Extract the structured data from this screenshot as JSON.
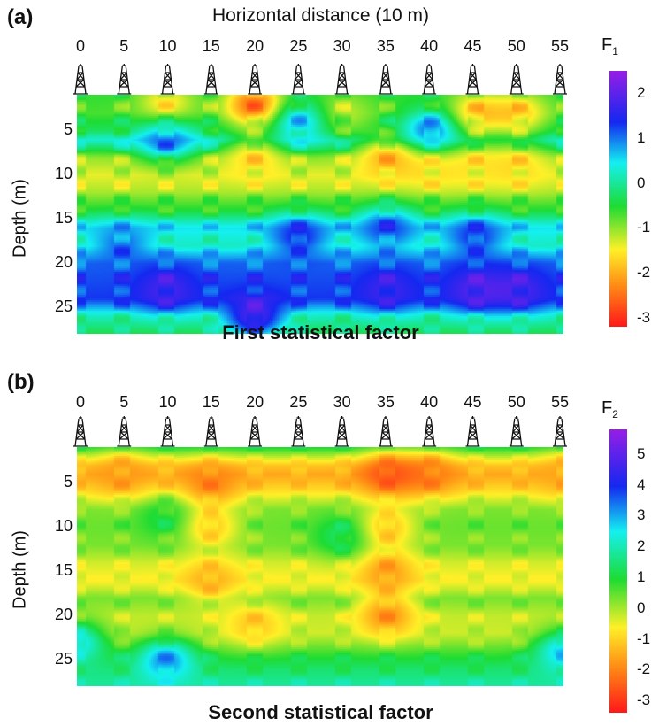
{
  "chart_data": [
    {
      "type": "heatmap",
      "panel_label": "(a)",
      "title": "First statistical factor",
      "xlabel": "Horizontal distance (10 m)",
      "ylabel": "Depth (m)",
      "x_ticks": [
        "0",
        "5",
        "10",
        "15",
        "20",
        "25",
        "30",
        "35",
        "40",
        "45",
        "50",
        "55"
      ],
      "x_range": [
        0,
        55
      ],
      "y_ticks": [
        "5",
        "10",
        "15",
        "20",
        "25"
      ],
      "y_range": [
        1,
        28
      ],
      "colorbar": {
        "title": "F",
        "subscript": "1",
        "ticks": [
          "2",
          "1",
          "0",
          "-1",
          "-2",
          "-3"
        ],
        "range": [
          -3.2,
          2.5
        ]
      },
      "wells_x": [
        0,
        5,
        10,
        15,
        20,
        25,
        30,
        35,
        40,
        45,
        50,
        55
      ],
      "depth_profile": [
        {
          "depth": 1,
          "value": -0.6
        },
        {
          "depth": 3,
          "value": -0.7
        },
        {
          "depth": 5,
          "value": -0.3
        },
        {
          "depth": 6,
          "value": 0.3
        },
        {
          "depth": 8,
          "value": -1.0
        },
        {
          "depth": 10,
          "value": -1.4
        },
        {
          "depth": 12,
          "value": -1.1
        },
        {
          "depth": 14,
          "value": -0.5
        },
        {
          "depth": 16,
          "value": 0.5
        },
        {
          "depth": 18,
          "value": 0.2
        },
        {
          "depth": 20,
          "value": 1.1
        },
        {
          "depth": 22,
          "value": 1.2
        },
        {
          "depth": 24,
          "value": 1.3
        },
        {
          "depth": 26,
          "value": 0.2
        },
        {
          "depth": 28,
          "value": -0.4
        }
      ],
      "features": [
        {
          "x": 20,
          "depth": 2,
          "value": -2.9
        },
        {
          "x": 10,
          "depth": 2,
          "value": -1.8
        },
        {
          "x": 30,
          "depth": 3,
          "value": -1.3
        },
        {
          "x": 45,
          "depth": 3,
          "value": -2.0
        },
        {
          "x": 50,
          "depth": 3,
          "value": -1.9
        },
        {
          "x": 25,
          "depth": 4,
          "value": 1.0
        },
        {
          "x": 40,
          "depth": 5,
          "value": 1.4
        },
        {
          "x": 10,
          "depth": 6,
          "value": 1.3
        },
        {
          "x": 20,
          "depth": 8,
          "value": -1.8
        },
        {
          "x": 35,
          "depth": 8,
          "value": -2.1
        },
        {
          "x": 40,
          "depth": 9,
          "value": -1.7
        },
        {
          "x": 45,
          "depth": 9,
          "value": -1.6
        },
        {
          "x": 50,
          "depth": 9,
          "value": -1.7
        },
        {
          "x": 5,
          "depth": 18,
          "value": 1.2
        },
        {
          "x": 25,
          "depth": 17,
          "value": 1.6
        },
        {
          "x": 35,
          "depth": 16,
          "value": 1.4
        },
        {
          "x": 45,
          "depth": 17,
          "value": 1.5
        },
        {
          "x": 10,
          "depth": 23,
          "value": 1.9
        },
        {
          "x": 20,
          "depth": 26,
          "value": 2.2
        },
        {
          "x": 35,
          "depth": 23,
          "value": 1.8
        },
        {
          "x": 45,
          "depth": 23,
          "value": 2.0
        },
        {
          "x": 50,
          "depth": 23,
          "value": 1.9
        }
      ]
    },
    {
      "type": "heatmap",
      "panel_label": "(b)",
      "title": "Second statistical factor",
      "xlabel": "",
      "ylabel": "Depth (m)",
      "x_ticks": [
        "0",
        "5",
        "10",
        "15",
        "20",
        "25",
        "30",
        "35",
        "40",
        "45",
        "50",
        "55"
      ],
      "x_range": [
        0,
        55
      ],
      "y_ticks": [
        "5",
        "10",
        "15",
        "20",
        "25"
      ],
      "y_range": [
        1,
        28
      ],
      "colorbar": {
        "title": "F",
        "subscript": "2",
        "ticks": [
          "5",
          "4",
          "3",
          "2",
          "1",
          "0",
          "-1",
          "-2",
          "-3"
        ],
        "range": [
          -3.4,
          5.8
        ]
      },
      "wells_x": [
        0,
        5,
        10,
        15,
        20,
        25,
        30,
        35,
        40,
        45,
        50,
        55
      ],
      "depth_profile": [
        {
          "depth": 1,
          "value": 0.9
        },
        {
          "depth": 3,
          "value": -1.2
        },
        {
          "depth": 4,
          "value": -1.6
        },
        {
          "depth": 6,
          "value": -0.8
        },
        {
          "depth": 8,
          "value": 0.3
        },
        {
          "depth": 10,
          "value": 0.4
        },
        {
          "depth": 12,
          "value": 0.3
        },
        {
          "depth": 14,
          "value": -0.3
        },
        {
          "depth": 16,
          "value": -0.7
        },
        {
          "depth": 18,
          "value": 0.3
        },
        {
          "depth": 20,
          "value": -0.2
        },
        {
          "depth": 22,
          "value": -0.3
        },
        {
          "depth": 24,
          "value": 0.6
        },
        {
          "depth": 26,
          "value": 1.4
        },
        {
          "depth": 28,
          "value": 1.8
        }
      ],
      "features": [
        {
          "x": 35,
          "depth": 4,
          "value": -2.8
        },
        {
          "x": 40,
          "depth": 4,
          "value": -2.2
        },
        {
          "x": 15,
          "depth": 5,
          "value": -2.2
        },
        {
          "x": 5,
          "depth": 4,
          "value": -1.8
        },
        {
          "x": 55,
          "depth": 4,
          "value": -1.6
        },
        {
          "x": 15,
          "depth": 10,
          "value": -1.4
        },
        {
          "x": 35,
          "depth": 10,
          "value": -1.5
        },
        {
          "x": 30,
          "depth": 11,
          "value": 1.6
        },
        {
          "x": 10,
          "depth": 9,
          "value": 1.3
        },
        {
          "x": 35,
          "depth": 15,
          "value": -1.9
        },
        {
          "x": 15,
          "depth": 16,
          "value": -1.6
        },
        {
          "x": 35,
          "depth": 20,
          "value": -2.1
        },
        {
          "x": 20,
          "depth": 21,
          "value": -1.3
        },
        {
          "x": 10,
          "depth": 25,
          "value": 3.6
        },
        {
          "x": 55,
          "depth": 24,
          "value": 3.2
        },
        {
          "x": 0,
          "depth": 23,
          "value": 3.0
        }
      ]
    }
  ]
}
